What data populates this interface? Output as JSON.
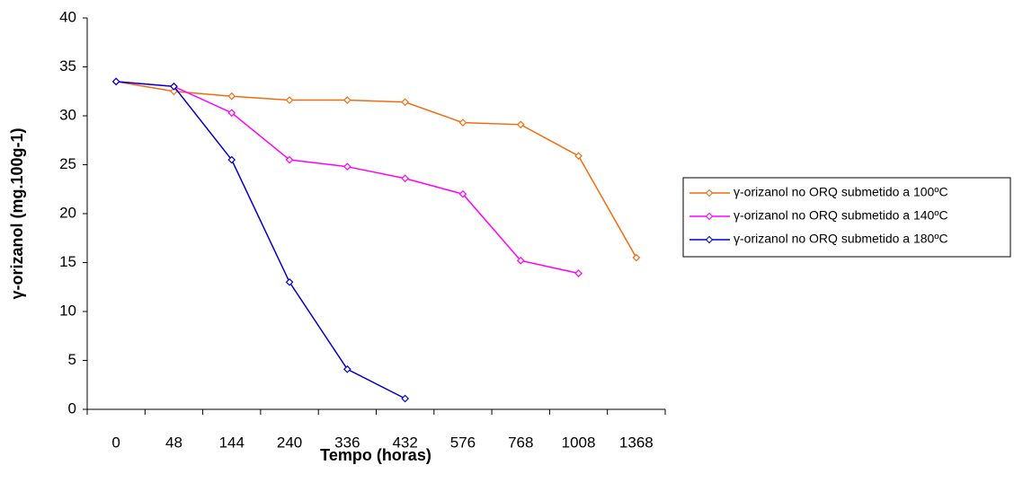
{
  "chart_data": {
    "type": "line",
    "x_label": "Tempo (horas)",
    "y_label": "γ-orizanol (mg.100g-1)",
    "categories": [
      "0",
      "48",
      "144",
      "240",
      "336",
      "432",
      "576",
      "768",
      "1008",
      "1368"
    ],
    "series": [
      {
        "name": "γ-orizanol no ORQ submetido a 100ºC",
        "color": "#f26b0f",
        "values": [
          33.5,
          32.5,
          32,
          31.6,
          31.6,
          31.4,
          29.3,
          29.1,
          25.9,
          15.5
        ]
      },
      {
        "name": "γ-orizanol no ORQ submetido a 140ºC",
        "color": "#ff00ff",
        "values": [
          33.5,
          33,
          30.3,
          25.5,
          24.8,
          23.6,
          22,
          15.2,
          13.9,
          null
        ]
      },
      {
        "name": "γ-orizanol no ORQ submetido a 180ºC",
        "color": "#0000cc",
        "values": [
          33.5,
          33,
          25.5,
          13,
          4.1,
          1.1,
          null,
          null,
          null,
          null
        ]
      }
    ],
    "ylim": [
      0,
      40
    ],
    "yticks": [
      0,
      5,
      10,
      15,
      20,
      25,
      30,
      35,
      40
    ],
    "grid": false,
    "legend": "right"
  }
}
